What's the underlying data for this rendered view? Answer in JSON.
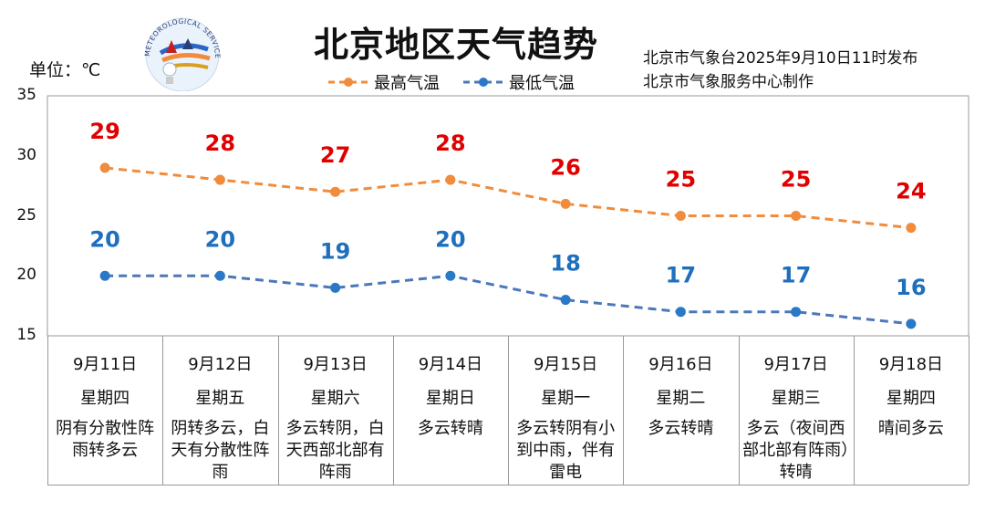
{
  "header": {
    "title": "北京地区天气趋势",
    "unit_label": "单位：℃",
    "issuer_line1": "北京市气象台2025年9月10日11时发布",
    "issuer_line2": "北京市气象服务中心制作",
    "logo_text": "METEOROLOGICAL SERVICE"
  },
  "colors": {
    "high_line": "#f08c3c",
    "low_line": "#4a78b8",
    "high_label": "#e00000",
    "low_label": "#1f6fbf",
    "frame": "#999999"
  },
  "chart_data": {
    "type": "line",
    "title": "北京地区天气趋势",
    "xlabel": "",
    "ylabel": "单位：℃",
    "ylim": [
      15,
      35
    ],
    "yticks": [
      15,
      20,
      25,
      30,
      35
    ],
    "grid": false,
    "legend_position": "top",
    "categories": [
      "9月11日",
      "9月12日",
      "9月13日",
      "9月14日",
      "9月15日",
      "9月16日",
      "9月17日",
      "9月18日"
    ],
    "series": [
      {
        "name": "最高气温",
        "values": [
          29,
          28,
          27,
          28,
          26,
          25,
          25,
          24
        ]
      },
      {
        "name": "最低气温",
        "values": [
          20,
          20,
          19,
          20,
          18,
          17,
          17,
          16
        ]
      }
    ]
  },
  "days": [
    {
      "date": "9月11日",
      "weekday": "星期四",
      "condition": "阴有分散性阵雨转多云"
    },
    {
      "date": "9月12日",
      "weekday": "星期五",
      "condition": "阴转多云，白天有分散性阵雨"
    },
    {
      "date": "9月13日",
      "weekday": "星期六",
      "condition": "多云转阴，白天西部北部有阵雨"
    },
    {
      "date": "9月14日",
      "weekday": "星期日",
      "condition": "多云转晴"
    },
    {
      "date": "9月15日",
      "weekday": "星期一",
      "condition": "多云转阴有小到中雨，伴有雷电"
    },
    {
      "date": "9月16日",
      "weekday": "星期二",
      "condition": "多云转晴"
    },
    {
      "date": "9月17日",
      "weekday": "星期三",
      "condition": "多云（夜间西部北部有阵雨）转晴"
    },
    {
      "date": "9月18日",
      "weekday": "星期四",
      "condition": "晴间多云"
    }
  ]
}
